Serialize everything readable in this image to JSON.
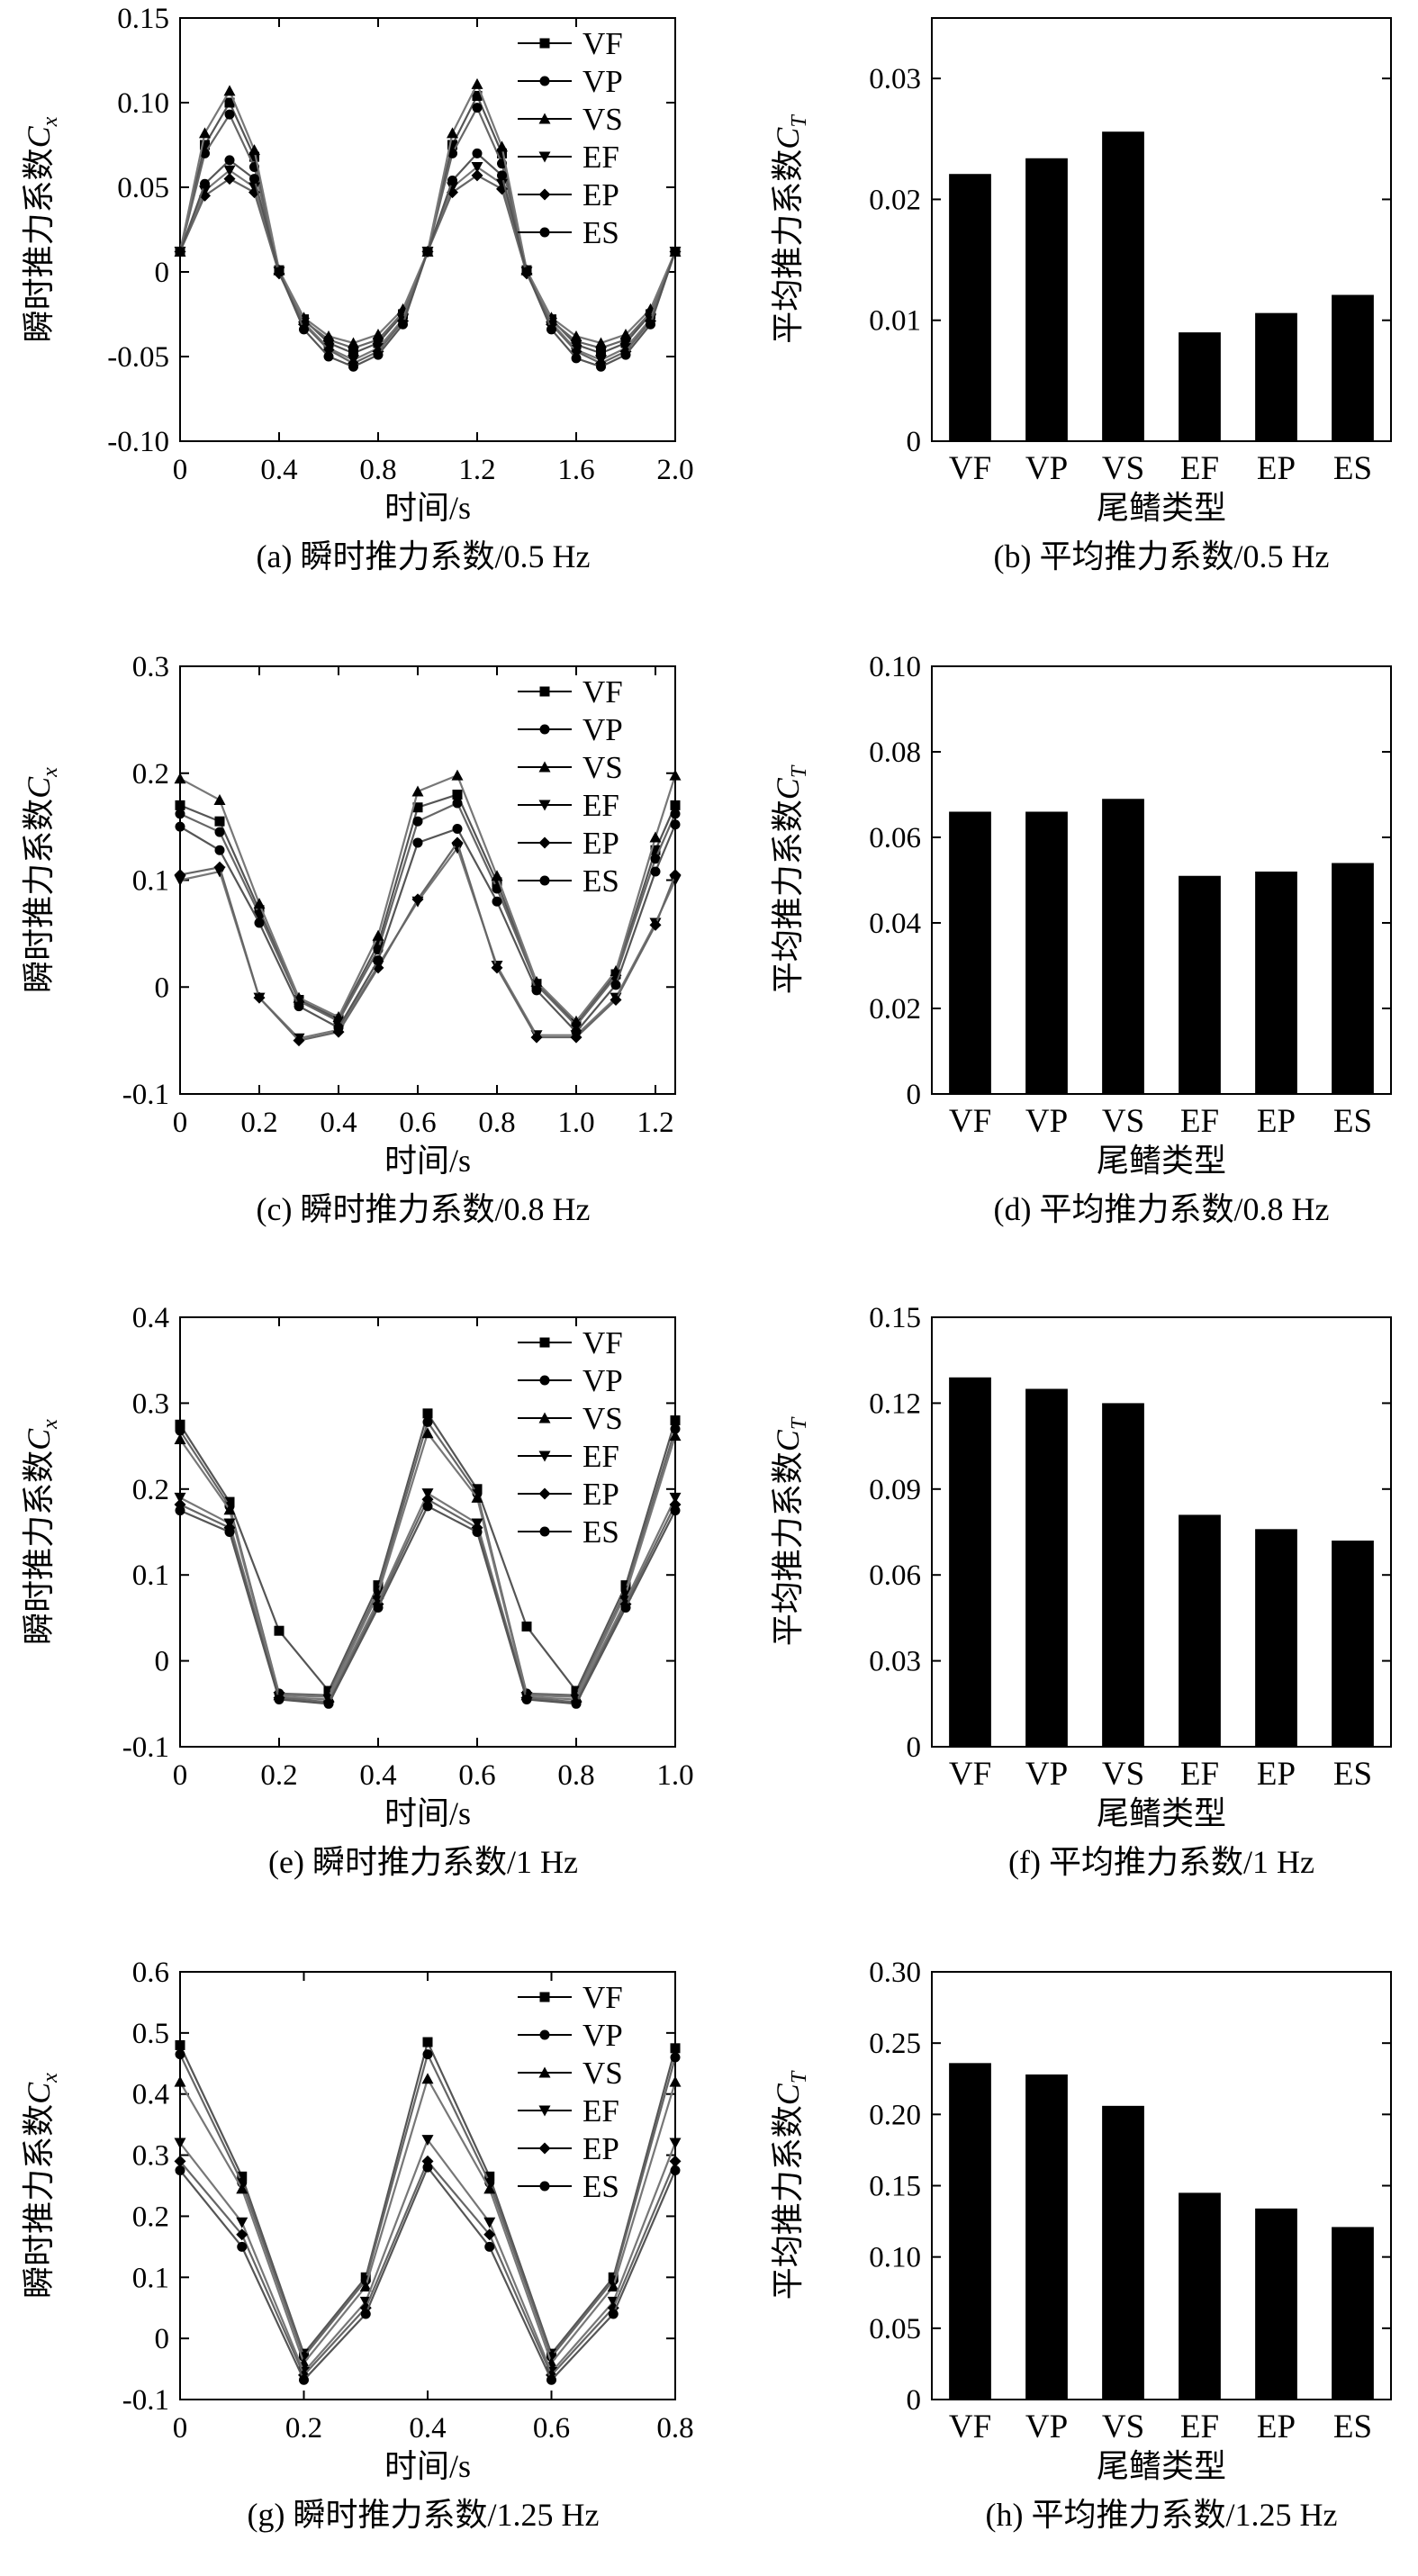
{
  "chart_data": [
    {
      "id": "a",
      "type": "line",
      "caption": "(a) 瞬时推力系数/0.5 Hz",
      "xlabel": "时间/s",
      "ylabel": "瞬时推力系数",
      "ylabel_symbol": "C",
      "ylabel_sub": "x",
      "xlim": [
        0,
        2.0
      ],
      "ylim": [
        -0.1,
        0.15
      ],
      "xticks": [
        "0",
        "0.4",
        "0.8",
        "1.2",
        "1.6",
        "2.0"
      ],
      "yticks": [
        "-0.10",
        "-0.05",
        "0",
        "0.05",
        "0.10",
        "0.15"
      ],
      "legend_position": "top-right",
      "x": [
        0,
        0.1,
        0.2,
        0.3,
        0.4,
        0.5,
        0.6,
        0.7,
        0.8,
        0.9,
        1.0,
        1.1,
        1.2,
        1.3,
        1.4,
        1.5,
        1.6,
        1.7,
        1.8,
        1.9,
        2.0
      ],
      "series": [
        {
          "name": "VF",
          "marker": "square",
          "values": [
            0.012,
            0.075,
            0.1,
            0.068,
            0.001,
            -0.028,
            -0.042,
            -0.048,
            -0.042,
            -0.025,
            0.012,
            0.075,
            0.104,
            0.07,
            0.001,
            -0.028,
            -0.043,
            -0.048,
            -0.042,
            -0.025,
            0.012
          ]
        },
        {
          "name": "VP",
          "marker": "circle",
          "values": [
            0.012,
            0.07,
            0.093,
            0.062,
            0.0,
            -0.029,
            -0.04,
            -0.045,
            -0.04,
            -0.024,
            0.012,
            0.07,
            0.097,
            0.064,
            0.0,
            -0.029,
            -0.041,
            -0.045,
            -0.04,
            -0.024,
            0.012
          ]
        },
        {
          "name": "VS",
          "marker": "triangle",
          "values": [
            0.012,
            0.082,
            0.107,
            0.072,
            0.001,
            -0.027,
            -0.038,
            -0.042,
            -0.037,
            -0.022,
            0.012,
            0.082,
            0.111,
            0.074,
            0.001,
            -0.027,
            -0.038,
            -0.042,
            -0.037,
            -0.022,
            0.012
          ]
        },
        {
          "name": "EF",
          "marker": "triangle-down",
          "values": [
            0.012,
            0.048,
            0.06,
            0.05,
            0.0,
            -0.03,
            -0.045,
            -0.052,
            -0.045,
            -0.028,
            0.012,
            0.05,
            0.062,
            0.052,
            0.0,
            -0.03,
            -0.046,
            -0.052,
            -0.045,
            -0.028,
            0.012
          ]
        },
        {
          "name": "EP",
          "marker": "diamond",
          "values": [
            0.012,
            0.045,
            0.055,
            0.047,
            -0.001,
            -0.031,
            -0.046,
            -0.054,
            -0.047,
            -0.029,
            0.012,
            0.047,
            0.057,
            0.049,
            -0.001,
            -0.031,
            -0.047,
            -0.054,
            -0.047,
            -0.029,
            0.012
          ]
        },
        {
          "name": "ES",
          "marker": "circle",
          "values": [
            0.012,
            0.052,
            0.066,
            0.055,
            0.0,
            -0.034,
            -0.05,
            -0.056,
            -0.049,
            -0.031,
            0.012,
            0.054,
            0.07,
            0.057,
            0.0,
            -0.034,
            -0.051,
            -0.056,
            -0.049,
            -0.031,
            0.012
          ]
        }
      ]
    },
    {
      "id": "b",
      "type": "bar",
      "caption": "(b) 平均推力系数/0.5 Hz",
      "xlabel": "尾鳍类型",
      "ylabel": "平均推力系数",
      "ylabel_symbol": "C",
      "ylabel_sub": "T",
      "ylim": [
        0,
        0.035
      ],
      "yticks": [
        "0",
        "0.01",
        "0.02",
        "0.03"
      ],
      "categories": [
        "VF",
        "VP",
        "VS",
        "EF",
        "EP",
        "ES"
      ],
      "values": [
        0.0221,
        0.0234,
        0.0256,
        0.009,
        0.0106,
        0.0121
      ]
    },
    {
      "id": "c",
      "type": "line",
      "caption": "(c) 瞬时推力系数/0.8 Hz",
      "xlabel": "时间/s",
      "ylabel": "瞬时推力系数",
      "ylabel_symbol": "C",
      "ylabel_sub": "x",
      "xlim": [
        0,
        1.25
      ],
      "ylim": [
        -0.1,
        0.3
      ],
      "xticks": [
        "0",
        "0.2",
        "0.4",
        "0.6",
        "0.8",
        "1.0",
        "1.2"
      ],
      "yticks": [
        "-0.1",
        "0",
        "0.1",
        "0.2",
        "0.3"
      ],
      "legend_position": "top-right",
      "x": [
        0,
        0.1,
        0.2,
        0.3,
        0.4,
        0.5,
        0.6,
        0.7,
        0.8,
        0.9,
        1.0,
        1.1,
        1.2,
        1.25
      ],
      "series": [
        {
          "name": "VF",
          "marker": "square",
          "values": [
            0.17,
            0.155,
            0.072,
            -0.012,
            -0.03,
            0.04,
            0.168,
            0.18,
            0.098,
            0.003,
            -0.034,
            0.012,
            0.128,
            0.17
          ]
        },
        {
          "name": "VP",
          "marker": "circle",
          "values": [
            0.162,
            0.145,
            0.068,
            -0.013,
            -0.032,
            0.035,
            0.155,
            0.172,
            0.092,
            0.002,
            -0.036,
            0.01,
            0.12,
            0.162
          ]
        },
        {
          "name": "VS",
          "marker": "triangle",
          "values": [
            0.195,
            0.175,
            0.078,
            -0.01,
            -0.028,
            0.048,
            0.183,
            0.198,
            0.104,
            0.005,
            -0.032,
            0.015,
            0.14,
            0.198
          ]
        },
        {
          "name": "EF",
          "marker": "triangle-down",
          "values": [
            0.1,
            0.108,
            -0.01,
            -0.048,
            -0.04,
            0.02,
            0.08,
            0.13,
            0.02,
            -0.045,
            -0.045,
            -0.01,
            0.06,
            0.1
          ]
        },
        {
          "name": "EP",
          "marker": "diamond",
          "values": [
            0.105,
            0.112,
            -0.01,
            -0.05,
            -0.042,
            0.018,
            0.082,
            0.135,
            0.018,
            -0.047,
            -0.047,
            -0.012,
            0.058,
            0.105
          ]
        },
        {
          "name": "ES",
          "marker": "circle",
          "values": [
            0.15,
            0.128,
            0.06,
            -0.018,
            -0.038,
            0.025,
            0.135,
            0.148,
            0.08,
            -0.003,
            -0.042,
            0.002,
            0.108,
            0.152
          ]
        }
      ]
    },
    {
      "id": "d",
      "type": "bar",
      "caption": "(d) 平均推力系数/0.8 Hz",
      "xlabel": "尾鳍类型",
      "ylabel": "平均推力系数",
      "ylabel_symbol": "C",
      "ylabel_sub": "T",
      "ylim": [
        0,
        0.1
      ],
      "yticks": [
        "0",
        "0.02",
        "0.04",
        "0.06",
        "0.08",
        "0.10"
      ],
      "categories": [
        "VF",
        "VP",
        "VS",
        "EF",
        "EP",
        "ES"
      ],
      "values": [
        0.066,
        0.066,
        0.069,
        0.051,
        0.052,
        0.054
      ]
    },
    {
      "id": "e",
      "type": "line",
      "caption": "(e) 瞬时推力系数/1 Hz",
      "xlabel": "时间/s",
      "ylabel": "瞬时推力系数",
      "ylabel_symbol": "C",
      "ylabel_sub": "x",
      "xlim": [
        0,
        1.0
      ],
      "ylim": [
        -0.1,
        0.4
      ],
      "xticks": [
        "0",
        "0.2",
        "0.4",
        "0.6",
        "0.8",
        "1.0"
      ],
      "yticks": [
        "-0.1",
        "0",
        "0.1",
        "0.2",
        "0.3",
        "0.4"
      ],
      "legend_position": "top-right",
      "x": [
        0,
        0.1,
        0.2,
        0.3,
        0.4,
        0.5,
        0.6,
        0.7,
        0.8,
        0.9,
        1.0
      ],
      "series": [
        {
          "name": "VF",
          "marker": "square",
          "values": [
            0.275,
            0.185,
            0.035,
            -0.035,
            0.088,
            0.288,
            0.2,
            0.04,
            -0.035,
            0.088,
            0.28
          ]
        },
        {
          "name": "VP",
          "marker": "circle",
          "values": [
            0.268,
            0.18,
            -0.038,
            -0.04,
            0.082,
            0.278,
            0.195,
            -0.038,
            -0.04,
            0.082,
            0.27
          ]
        },
        {
          "name": "VS",
          "marker": "triangle",
          "values": [
            0.258,
            0.176,
            -0.04,
            -0.042,
            0.078,
            0.265,
            0.19,
            -0.04,
            -0.042,
            0.078,
            0.262
          ]
        },
        {
          "name": "EF",
          "marker": "triangle-down",
          "values": [
            0.19,
            0.16,
            -0.042,
            -0.045,
            0.07,
            0.195,
            0.16,
            -0.042,
            -0.045,
            0.07,
            0.19
          ]
        },
        {
          "name": "EP",
          "marker": "diamond",
          "values": [
            0.182,
            0.155,
            -0.043,
            -0.048,
            0.066,
            0.188,
            0.155,
            -0.043,
            -0.048,
            0.066,
            0.182
          ]
        },
        {
          "name": "ES",
          "marker": "circle",
          "values": [
            0.175,
            0.15,
            -0.045,
            -0.05,
            0.062,
            0.18,
            0.15,
            -0.045,
            -0.05,
            0.062,
            0.175
          ]
        }
      ]
    },
    {
      "id": "f",
      "type": "bar",
      "caption": "(f) 平均推力系数/1 Hz",
      "xlabel": "尾鳍类型",
      "ylabel": "平均推力系数",
      "ylabel_symbol": "C",
      "ylabel_sub": "T",
      "ylim": [
        0,
        0.15
      ],
      "yticks": [
        "0",
        "0.03",
        "0.06",
        "0.09",
        "0.12",
        "0.15"
      ],
      "categories": [
        "VF",
        "VP",
        "VS",
        "EF",
        "EP",
        "ES"
      ],
      "values": [
        0.129,
        0.125,
        0.12,
        0.081,
        0.076,
        0.072
      ]
    },
    {
      "id": "g",
      "type": "line",
      "caption": "(g) 瞬时推力系数/1.25 Hz",
      "xlabel": "时间/s",
      "ylabel": "瞬时推力系数",
      "ylabel_symbol": "C",
      "ylabel_sub": "x",
      "xlim": [
        0,
        0.8
      ],
      "ylim": [
        -0.1,
        0.6
      ],
      "xticks": [
        "0",
        "0.2",
        "0.4",
        "0.6",
        "0.8"
      ],
      "yticks": [
        "-0.1",
        "0",
        "0.1",
        "0.2",
        "0.3",
        "0.4",
        "0.5",
        "0.6"
      ],
      "legend_position": "top-right",
      "x": [
        0,
        0.1,
        0.2,
        0.3,
        0.4,
        0.5,
        0.6,
        0.7,
        0.8
      ],
      "series": [
        {
          "name": "VF",
          "marker": "square",
          "values": [
            0.48,
            0.265,
            -0.025,
            0.1,
            0.485,
            0.265,
            -0.025,
            0.1,
            0.475
          ]
        },
        {
          "name": "VP",
          "marker": "circle",
          "values": [
            0.465,
            0.255,
            -0.03,
            0.095,
            0.465,
            0.255,
            -0.03,
            0.095,
            0.46
          ]
        },
        {
          "name": "VS",
          "marker": "triangle",
          "values": [
            0.42,
            0.245,
            -0.04,
            0.085,
            0.425,
            0.245,
            -0.04,
            0.085,
            0.42
          ]
        },
        {
          "name": "EF",
          "marker": "triangle-down",
          "values": [
            0.32,
            0.19,
            -0.055,
            0.06,
            0.325,
            0.19,
            -0.055,
            0.06,
            0.32
          ]
        },
        {
          "name": "EP",
          "marker": "diamond",
          "values": [
            0.29,
            0.17,
            -0.06,
            0.05,
            0.29,
            0.17,
            -0.06,
            0.05,
            0.29
          ]
        },
        {
          "name": "ES",
          "marker": "circle",
          "values": [
            0.275,
            0.15,
            -0.068,
            0.04,
            0.28,
            0.15,
            -0.068,
            0.04,
            0.275
          ]
        }
      ]
    },
    {
      "id": "h",
      "type": "bar",
      "caption": "(h) 平均推力系数/1.25 Hz",
      "xlabel": "尾鳍类型",
      "ylabel": "平均推力系数",
      "ylabel_symbol": "C",
      "ylabel_sub": "T",
      "ylim": [
        0,
        0.3
      ],
      "yticks": [
        "0",
        "0.05",
        "0.10",
        "0.15",
        "0.20",
        "0.25",
        "0.30"
      ],
      "categories": [
        "VF",
        "VP",
        "VS",
        "EF",
        "EP",
        "ES"
      ],
      "values": [
        0.236,
        0.228,
        0.206,
        0.145,
        0.134,
        0.121
      ]
    }
  ]
}
